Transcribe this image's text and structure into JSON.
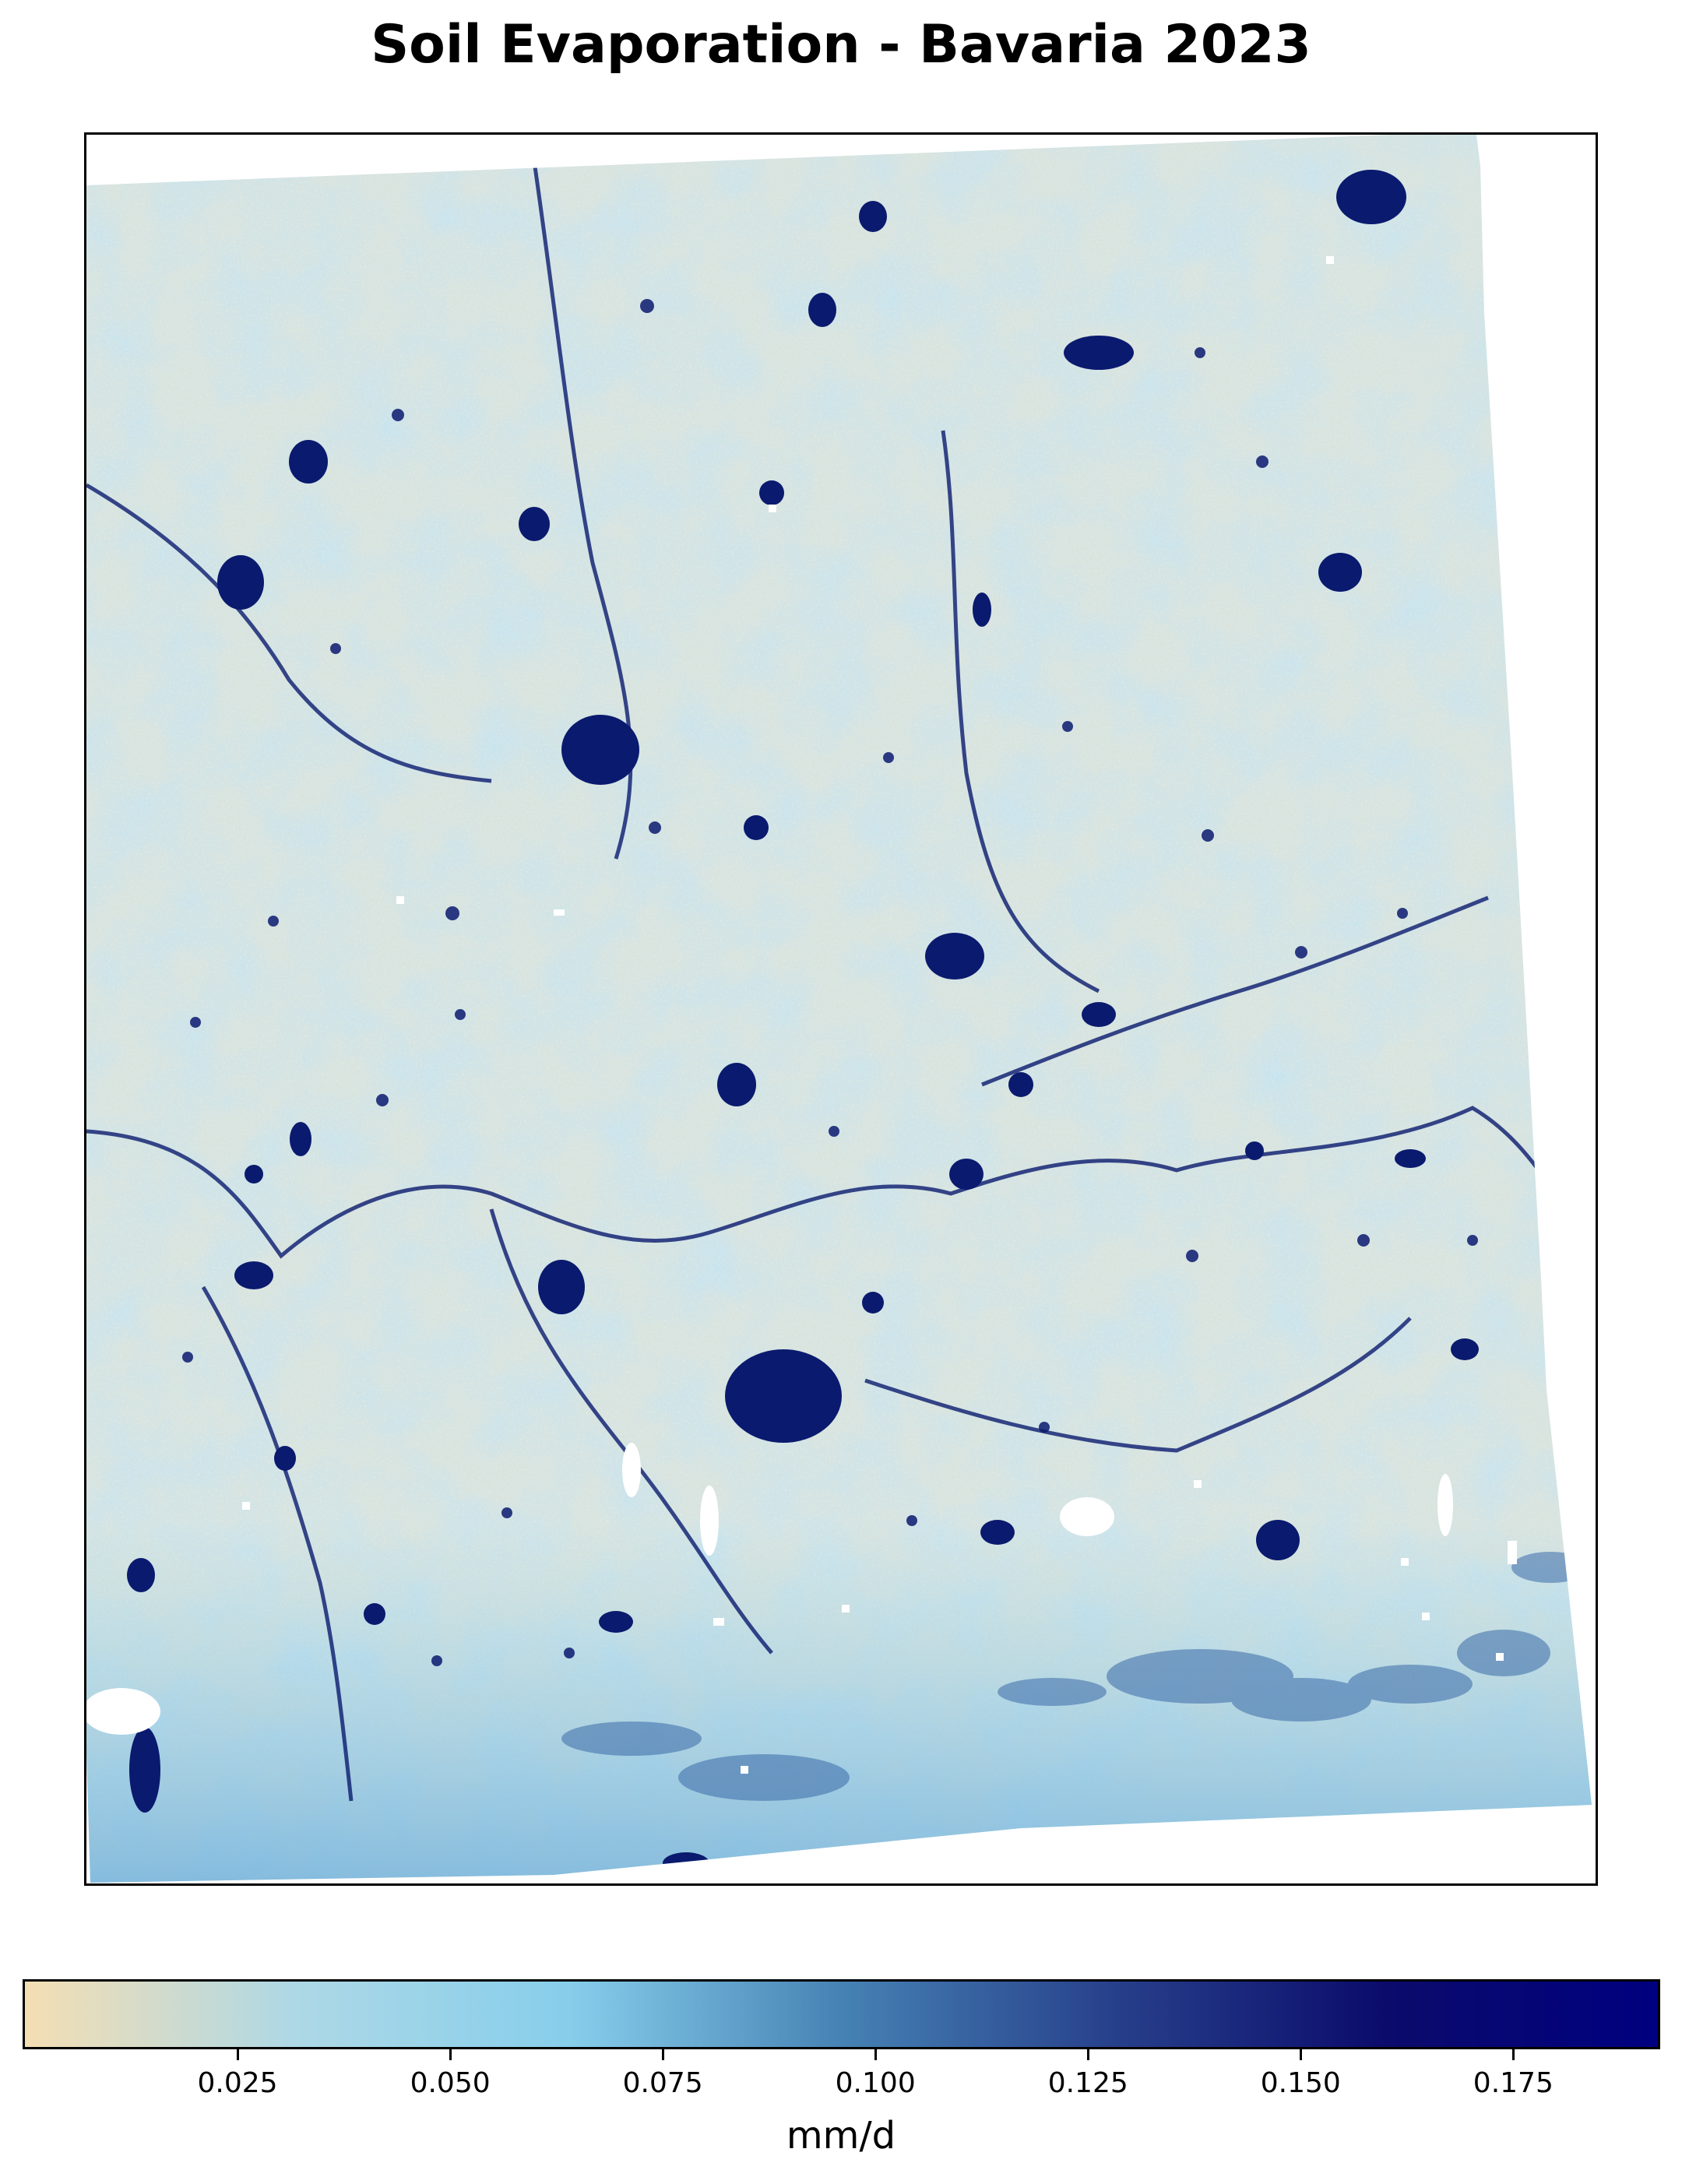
{
  "title": "Soil Evaporation - Bavaria 2023",
  "colorbar": {
    "label": "mm/d",
    "min": 0.0,
    "max": 0.192,
    "ticks": [
      "0.025",
      "0.050",
      "0.075",
      "0.100",
      "0.125",
      "0.150",
      "0.175"
    ],
    "tick_values": [
      0.025,
      0.05,
      0.075,
      0.1,
      0.125,
      0.15,
      0.175
    ],
    "colors": [
      "#f5deb3",
      "#add8e6",
      "#87ceeb",
      "#4682b4",
      "#27408b",
      "#0b0b6b",
      "#000080"
    ]
  },
  "map": {
    "background_color": "#cfe3e8",
    "urban_color": "#0a1a6e"
  }
}
